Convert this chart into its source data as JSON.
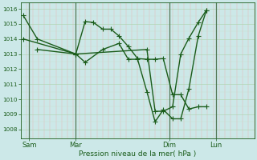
{
  "xlabel": "Pression niveau de la mer( hPa )",
  "bg_color": "#cce8e8",
  "line_color": "#1a5c1a",
  "ylim": [
    1007.4,
    1016.4
  ],
  "yticks": [
    1008,
    1009,
    1010,
    1011,
    1012,
    1013,
    1014,
    1015,
    1016
  ],
  "xlim": [
    0,
    10.0
  ],
  "xtick_positions": [
    0.35,
    2.35,
    6.35,
    8.35
  ],
  "xtick_labels": [
    "Sam",
    "Mar",
    "Dim",
    "Lun"
  ],
  "vline_positions": [
    0.35,
    2.35,
    6.35,
    8.35
  ],
  "line1_x": [
    0.1,
    0.7,
    2.35,
    2.75,
    3.1,
    3.5,
    3.85,
    4.2,
    4.6,
    5.0,
    5.4,
    5.75,
    6.1,
    6.5,
    6.85,
    7.2,
    7.6,
    7.95
  ],
  "line1_y": [
    1015.55,
    1014.0,
    1013.0,
    1015.15,
    1015.1,
    1014.65,
    1014.65,
    1014.2,
    1013.5,
    1012.7,
    1012.65,
    1012.65,
    1012.7,
    1010.3,
    1010.3,
    1009.35,
    1009.5,
    1009.5
  ],
  "line2_x": [
    0.7,
    2.35,
    2.75,
    3.5,
    4.2,
    4.6,
    5.0,
    5.4,
    5.75,
    6.1,
    6.5,
    6.85,
    7.2,
    7.6,
    7.95
  ],
  "line2_y": [
    1013.3,
    1013.0,
    1012.45,
    1013.3,
    1013.7,
    1012.65,
    1012.65,
    1010.5,
    1008.5,
    1009.3,
    1008.7,
    1008.7,
    1010.7,
    1014.2,
    1015.9
  ],
  "line3_x": [
    0.1,
    2.35,
    5.4,
    5.75,
    6.1,
    6.5,
    6.85,
    7.2,
    7.6,
    7.95
  ],
  "line3_y": [
    1014.0,
    1013.0,
    1013.3,
    1009.2,
    1009.2,
    1009.5,
    1013.0,
    1014.05,
    1015.1,
    1015.9
  ],
  "marker_size": 3.0,
  "linewidth": 1.0
}
